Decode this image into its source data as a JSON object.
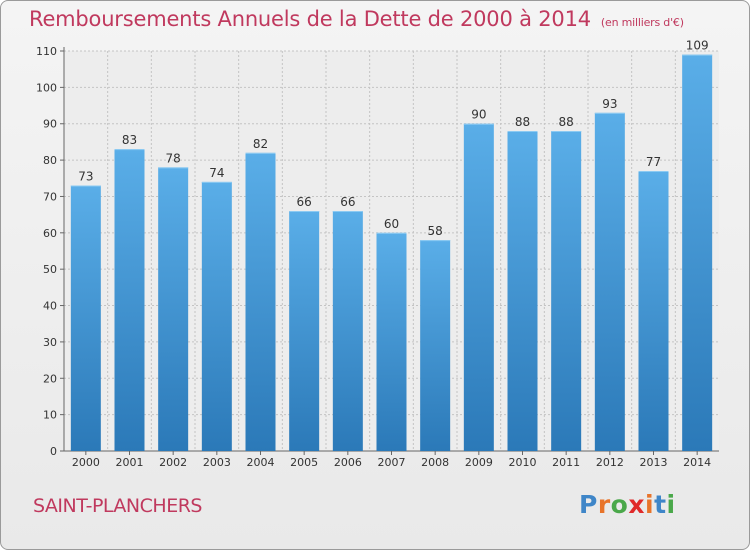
{
  "header": {
    "title": "Remboursements Annuels de la Dette de 2000 à 2014",
    "unit": "(en milliers d'€)"
  },
  "footer": {
    "region": "SAINT-PLANCHERS",
    "logo_letters": [
      "P",
      "r",
      "o",
      "x",
      "i",
      "t",
      "i"
    ],
    "logo_colors": [
      "#3f86c8",
      "#e8742a",
      "#4aa84a",
      "#e02a2a",
      "#e8742a",
      "#3f86c8",
      "#4aa84a"
    ]
  },
  "chart_data": {
    "type": "bar",
    "categories": [
      "2000",
      "2001",
      "2002",
      "2003",
      "2004",
      "2005",
      "2006",
      "2007",
      "2008",
      "2009",
      "2010",
      "2011",
      "2012",
      "2013",
      "2014"
    ],
    "values": [
      73,
      83,
      78,
      74,
      82,
      66,
      66,
      60,
      58,
      90,
      88,
      88,
      93,
      77,
      109
    ],
    "ylim": [
      0,
      110
    ],
    "yticks": [
      0,
      10,
      20,
      30,
      40,
      50,
      60,
      70,
      80,
      90,
      100,
      110
    ],
    "grid": true,
    "bar_color_top": "#5aaee8",
    "bar_color_bottom": "#2b79b8",
    "data_labels": true
  }
}
